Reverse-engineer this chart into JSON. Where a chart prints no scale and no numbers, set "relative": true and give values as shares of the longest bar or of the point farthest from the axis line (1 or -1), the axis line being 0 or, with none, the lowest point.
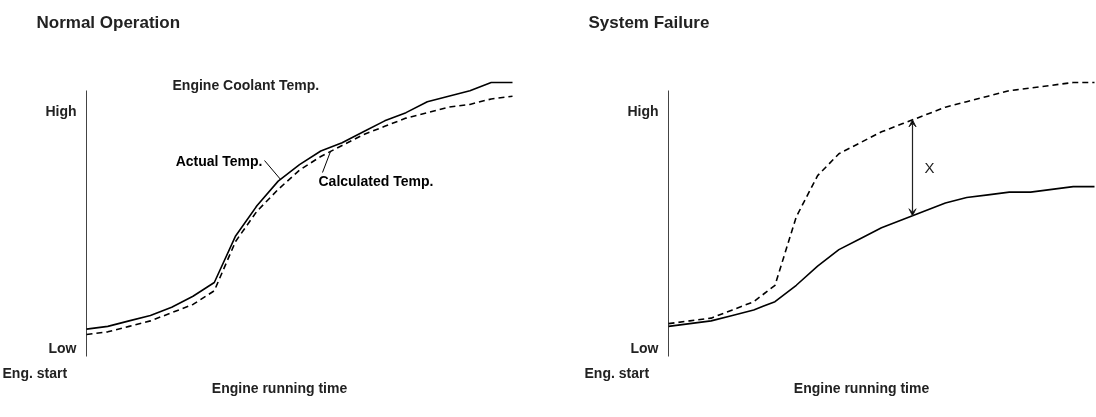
{
  "chart_data": [
    {
      "type": "line",
      "title": "Normal Operation",
      "subtitle": "Engine Coolant Temp.",
      "xlabel": "Engine running time",
      "relative": true,
      "categories": [
        null,
        null,
        null,
        null,
        null,
        null,
        null,
        null,
        null,
        null,
        null,
        null,
        null,
        null,
        null,
        null,
        null,
        null,
        null,
        null,
        null
      ],
      "series": [
        {
          "name": "Actual Temp.",
          "color": "#000000",
          "line_style": "solid",
          "values": [
            0.1,
            0.11,
            0.13,
            0.15,
            0.18,
            0.22,
            0.27,
            0.44,
            0.55,
            0.64,
            0.7,
            0.75,
            0.78,
            0.82,
            0.86,
            0.89,
            0.93,
            0.95,
            0.97,
            1.0,
            1.0
          ]
        },
        {
          "name": "Calculated Temp.",
          "color": "#000000",
          "line_style": "dashed",
          "values": [
            0.08,
            0.09,
            0.11,
            0.13,
            0.16,
            0.19,
            0.24,
            0.42,
            0.53,
            0.61,
            0.68,
            0.73,
            0.77,
            0.81,
            0.84,
            0.87,
            0.89,
            0.91,
            0.92,
            0.94,
            0.95
          ]
        }
      ],
      "annotations": [
        "High",
        "Low",
        "Eng. start"
      ]
    },
    {
      "type": "line",
      "title": "System Failure",
      "xlabel": "Engine running time",
      "relative": true,
      "categories": [
        null,
        null,
        null,
        null,
        null,
        null,
        null,
        null,
        null,
        null,
        null,
        null,
        null,
        null,
        null,
        null,
        null,
        null,
        null,
        null,
        null
      ],
      "series": [
        {
          "color": "#000000",
          "line_style": "dashed",
          "values": [
            0.12,
            0.13,
            0.14,
            0.17,
            0.2,
            0.26,
            0.51,
            0.66,
            0.74,
            0.78,
            0.82,
            0.85,
            0.88,
            0.91,
            0.93,
            0.95,
            0.97,
            0.98,
            0.99,
            1.0,
            1.0
          ]
        },
        {
          "color": "#000000",
          "line_style": "solid",
          "values": [
            0.11,
            0.12,
            0.13,
            0.15,
            0.17,
            0.2,
            0.26,
            0.33,
            0.39,
            0.43,
            0.47,
            0.5,
            0.53,
            0.56,
            0.58,
            0.59,
            0.6,
            0.6,
            0.61,
            0.62,
            0.62
          ]
        }
      ],
      "annotations": [
        "High",
        "Low",
        "Eng. start",
        "X"
      ]
    }
  ]
}
